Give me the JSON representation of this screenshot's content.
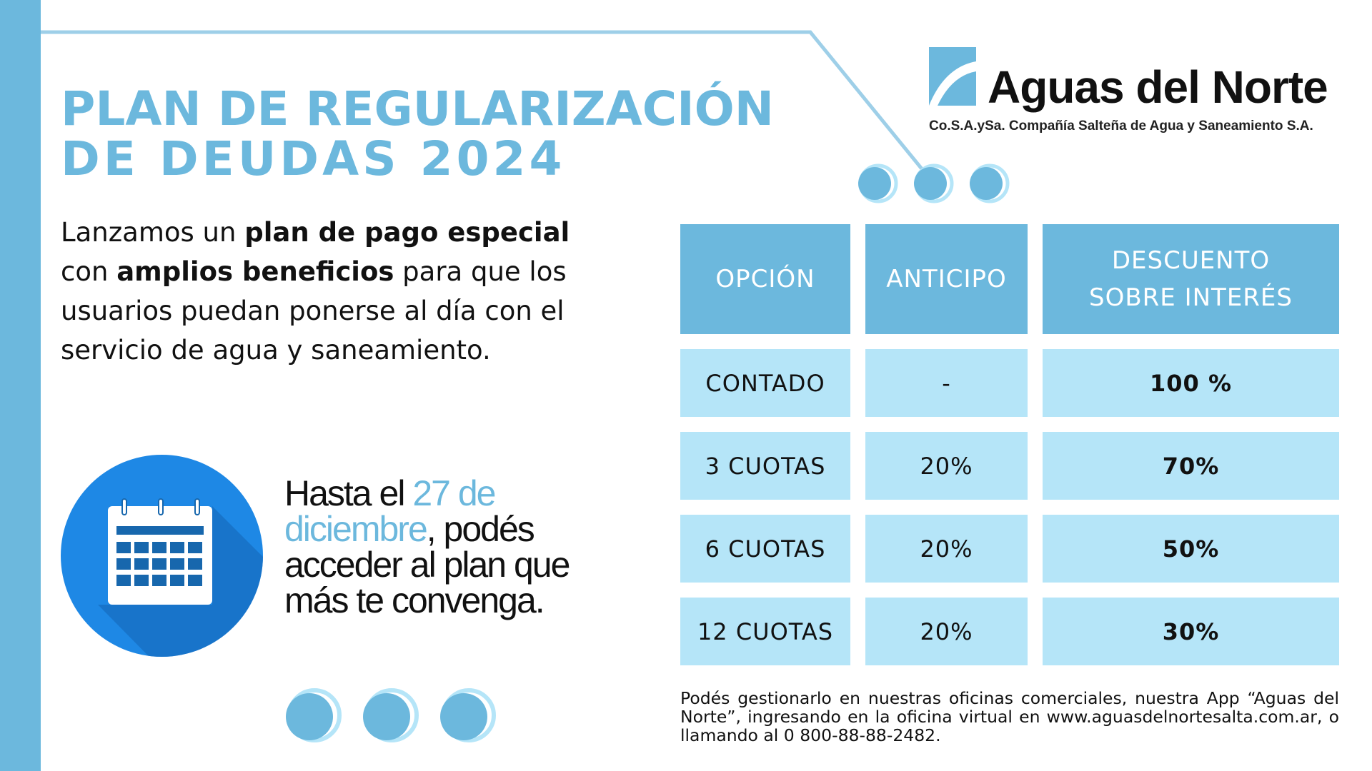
{
  "title": {
    "line1": "PLAN DE REGULARIZACIÓN",
    "line2": "DE DEUDAS 2024"
  },
  "intro": {
    "part1": "Lanzamos un ",
    "bold1": "plan de pago especial",
    "part2": " con ",
    "bold2": "amplios beneficios",
    "part3": " para que los usuarios puedan ponerse al día con el servicio de agua y saneamiento."
  },
  "deadline": {
    "before": "Hasta el ",
    "highlight": "27 de diciembre",
    "after": ", podés acceder al plan que más te convenga."
  },
  "logo": {
    "name": "Aguas del Norte",
    "subtitle": "Co.S.A.ySa. Compañía Salteña de Agua y Saneamiento S.A."
  },
  "table": {
    "headers": [
      "OPCIÓN",
      "ANTICIPO",
      "DESCUENTO SOBRE INTERÉS"
    ],
    "rows": [
      {
        "opcion": "CONTADO",
        "anticipo": "-",
        "descuento": "100 %"
      },
      {
        "opcion": "3 CUOTAS",
        "anticipo": "20%",
        "descuento": "70%"
      },
      {
        "opcion": "6 CUOTAS",
        "anticipo": "20%",
        "descuento": "50%"
      },
      {
        "opcion": "12 CUOTAS",
        "anticipo": "20%",
        "descuento": "30%"
      }
    ]
  },
  "footer": "Podés gestionarlo en nuestras oficinas comerciales, nuestra App “Aguas del Norte”, ingresando en la oficina virtual en www.aguasdelnortesalta.com.ar, o llamando al 0 800-88-88-2482.",
  "colors": {
    "accent": "#6cb8dd",
    "table_body": "#b5e5f8",
    "calendar_blue": "#1e88e5"
  }
}
